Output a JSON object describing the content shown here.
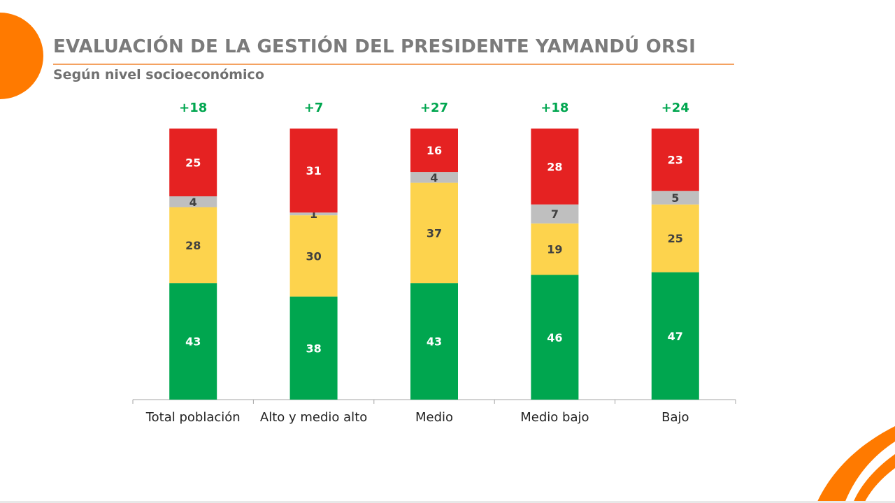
{
  "title": "EVALUACIÓN DE LA GESTIÓN DEL PRESIDENTE YAMANDÚ ORSI",
  "subtitle": "Según nivel socioeconómico",
  "colors": {
    "accent": "#ff7a00",
    "positive": "#00a64f",
    "neutral_positive": "#fdd34d",
    "no_answer": "#bfbfbf",
    "negative": "#e52222",
    "net_label": "#00a64f"
  },
  "chart_data": {
    "type": "bar",
    "stacked": true,
    "categories": [
      "Total población",
      "Alto y medio alto",
      "Medio",
      "Medio bajo",
      "Bajo"
    ],
    "series": [
      {
        "values": [
          43,
          38,
          43,
          46,
          47
        ],
        "color": "#00a64f"
      },
      {
        "values": [
          28,
          30,
          37,
          19,
          25
        ],
        "color": "#fdd34d"
      },
      {
        "values": [
          4,
          1,
          4,
          7,
          5
        ],
        "color": "#bfbfbf"
      },
      {
        "values": [
          25,
          31,
          16,
          28,
          23
        ],
        "color": "#e52222"
      }
    ],
    "net_labels": [
      "+18",
      "+7",
      "+27",
      "+18",
      "+24"
    ],
    "ylim": [
      0,
      100
    ],
    "grid": false,
    "legend": "none"
  }
}
